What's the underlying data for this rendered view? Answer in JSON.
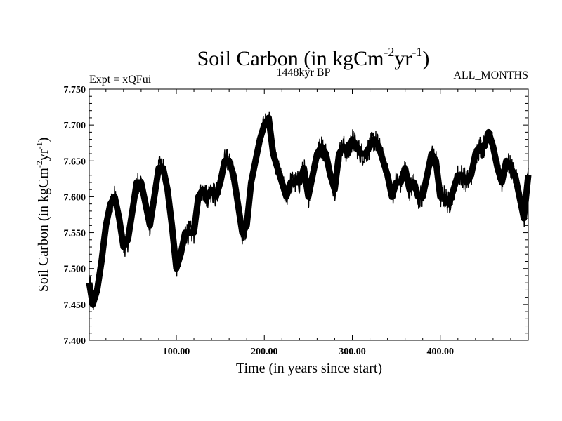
{
  "chart_data": {
    "type": "line",
    "title": "Soil Carbon (in kgCm",
    "title_sup1": "-2",
    "title_mid": "yr",
    "title_sup2": "-1",
    "title_end": ")",
    "subtitle": "1448kyr BP",
    "left_label": "Expt = xQFui",
    "right_label": "ALL_MONTHS",
    "xlabel": "Time (in years since start)",
    "ylabel": "Soil Carbon (in kgCm",
    "ylabel_sup1": "-2",
    "ylabel_mid": "yr",
    "ylabel_sup2": "-1",
    "ylabel_end": ")",
    "xlim": [
      1,
      500
    ],
    "ylim": [
      7.4,
      7.75
    ],
    "x_ticks": [
      100,
      200,
      300,
      400
    ],
    "x_tick_labels": [
      "100.00",
      "200.00",
      "300.00",
      "400.00"
    ],
    "y_ticks": [
      7.4,
      7.45,
      7.5,
      7.55,
      7.6,
      7.65,
      7.7,
      7.75
    ],
    "y_tick_labels": [
      "7.400",
      "7.450",
      "7.500",
      "7.550",
      "7.600",
      "7.650",
      "7.700",
      "7.750"
    ],
    "series": [
      {
        "name": "Soil Carbon",
        "color": "#000000",
        "x": [
          1,
          5,
          10,
          15,
          20,
          25,
          30,
          35,
          40,
          45,
          50,
          55,
          60,
          65,
          70,
          75,
          80,
          85,
          90,
          95,
          100,
          105,
          110,
          115,
          120,
          125,
          130,
          135,
          140,
          145,
          150,
          155,
          160,
          165,
          170,
          175,
          180,
          185,
          190,
          195,
          200,
          205,
          210,
          215,
          220,
          225,
          230,
          235,
          240,
          245,
          250,
          255,
          260,
          265,
          270,
          275,
          280,
          285,
          290,
          295,
          300,
          305,
          310,
          315,
          320,
          325,
          330,
          335,
          340,
          345,
          350,
          355,
          360,
          365,
          370,
          375,
          380,
          385,
          390,
          395,
          400,
          405,
          410,
          415,
          420,
          425,
          430,
          435,
          440,
          445,
          450,
          455,
          460,
          465,
          470,
          475,
          480,
          485,
          490,
          495,
          500
        ],
        "values": [
          7.48,
          7.45,
          7.47,
          7.51,
          7.56,
          7.59,
          7.6,
          7.57,
          7.53,
          7.54,
          7.58,
          7.62,
          7.62,
          7.59,
          7.56,
          7.6,
          7.64,
          7.64,
          7.61,
          7.56,
          7.5,
          7.52,
          7.55,
          7.55,
          7.55,
          7.6,
          7.61,
          7.6,
          7.61,
          7.6,
          7.62,
          7.65,
          7.65,
          7.63,
          7.59,
          7.55,
          7.56,
          7.62,
          7.65,
          7.68,
          7.7,
          7.71,
          7.66,
          7.64,
          7.62,
          7.6,
          7.62,
          7.62,
          7.62,
          7.64,
          7.6,
          7.63,
          7.66,
          7.67,
          7.66,
          7.63,
          7.61,
          7.66,
          7.67,
          7.66,
          7.68,
          7.67,
          7.66,
          7.66,
          7.67,
          7.68,
          7.67,
          7.65,
          7.63,
          7.6,
          7.62,
          7.62,
          7.64,
          7.61,
          7.62,
          7.6,
          7.6,
          7.63,
          7.66,
          7.65,
          7.6,
          7.6,
          7.59,
          7.61,
          7.63,
          7.63,
          7.62,
          7.63,
          7.66,
          7.67,
          7.67,
          7.69,
          7.67,
          7.64,
          7.62,
          7.65,
          7.64,
          7.63,
          7.6,
          7.57,
          7.63
        ]
      }
    ]
  }
}
